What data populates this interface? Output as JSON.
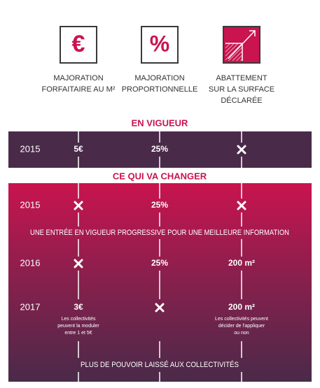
{
  "header": {
    "icons": [
      "€",
      "%"
    ],
    "columns": [
      {
        "lines": [
          "MAJORATION",
          "FORFAITAIRE AU M²"
        ]
      },
      {
        "lines": [
          "MAJORATION",
          "PROPORTIONNELLE"
        ]
      },
      {
        "lines": [
          "ABATTEMENT",
          "SUR LA SURFACE",
          "DÉCLARÉE"
        ]
      }
    ]
  },
  "current": {
    "heading": "EN VIGUEUR",
    "rows": [
      {
        "year": "2015",
        "cells": [
          "5€",
          "25%",
          null
        ]
      }
    ]
  },
  "changes": {
    "heading": "CE QUI VA CHANGER",
    "rows": [
      {
        "year": "2015",
        "cells": [
          null,
          "25%",
          null
        ]
      },
      {
        "year": "2016",
        "cells": [
          null,
          "25%",
          "200 m²"
        ]
      },
      {
        "year": "2017",
        "cells": [
          "3€",
          null,
          "200 m²"
        ],
        "notes": [
          [
            "Les collectivités",
            "peuvent la moduler",
            "entre 1 et 5€"
          ],
          null,
          [
            "Les collectivités peuvent",
            "décider de l'appliquer",
            "ou non"
          ]
        ]
      }
    ],
    "note": "UNE ENTRÉE EN VIGUEUR PROGRESSIVE POUR UNE MEILLEURE INFORMATION",
    "footer": "PLUS DE POUVOIR LAISSÉ AUX COLLECTIVITÉS"
  }
}
